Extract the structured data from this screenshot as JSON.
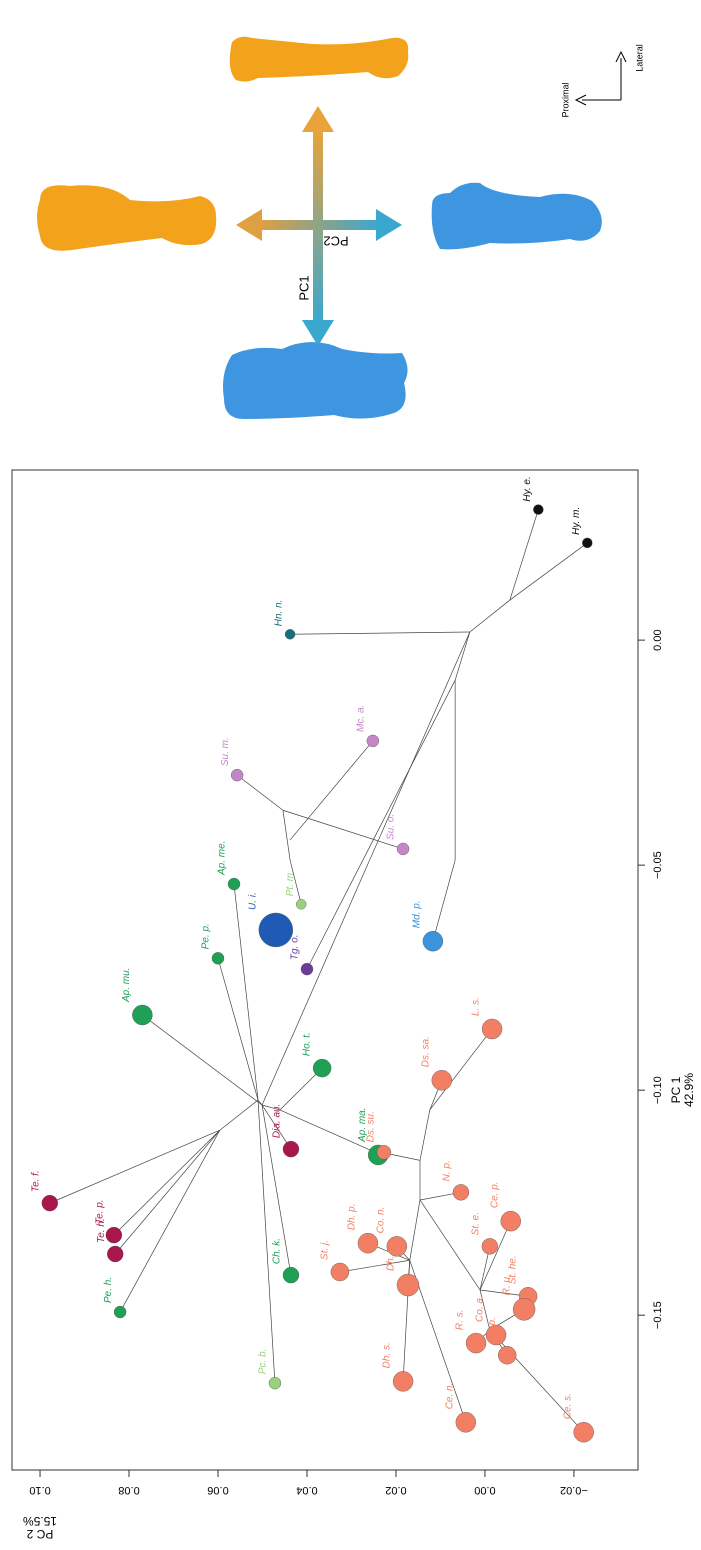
{
  "chart_data": {
    "type": "scatter",
    "x_label": [
      "PC 1",
      "42.9%"
    ],
    "y_label": [
      "PC 2",
      "15.5%"
    ],
    "xlim": [
      -0.1844,
      0.0378
    ],
    "ylim": [
      -0.0344,
      0.1063
    ],
    "xticks": [
      {
        "value": 0.0,
        "label": "0.00"
      },
      {
        "value": -0.05,
        "label": "−0.05"
      },
      {
        "value": -0.1,
        "label": "−0.10"
      },
      {
        "value": -0.15,
        "label": "−0.15"
      }
    ],
    "yticks": [
      {
        "value": 0.1,
        "label": "0.10"
      },
      {
        "value": 0.08,
        "label": "0.08"
      },
      {
        "value": 0.06,
        "label": "0.06"
      },
      {
        "value": 0.04,
        "label": "0.04"
      },
      {
        "value": 0.02,
        "label": "0.02"
      },
      {
        "value": 0.0,
        "label": "0.00"
      },
      {
        "value": -0.02,
        "label": "−0.02"
      }
    ],
    "points": [
      {
        "name": "Hy. e.",
        "pc1": 0.029,
        "pc2": -0.012,
        "size": 5,
        "color": "#111111"
      },
      {
        "name": "Hy. m.",
        "pc1": 0.0216,
        "pc2": -0.023,
        "size": 5,
        "color": "#111111"
      },
      {
        "name": "Hn. n.",
        "pc1": 0.0013,
        "pc2": 0.0438,
        "size": 5,
        "color": "#1b6e7e"
      },
      {
        "name": "Mc. a.",
        "pc1": -0.0224,
        "pc2": 0.0252,
        "size": 6,
        "color": "#c586c8"
      },
      {
        "name": "Su. m.",
        "pc1": -0.03,
        "pc2": 0.0557,
        "size": 6,
        "color": "#c586c8"
      },
      {
        "name": "Su. o.",
        "pc1": -0.0464,
        "pc2": 0.0184,
        "size": 6,
        "color": "#c586c8"
      },
      {
        "name": "Ap. me.",
        "pc1": -0.0542,
        "pc2": 0.0564,
        "size": 6,
        "color": "#1fa055"
      },
      {
        "name": "Pt. m.",
        "pc1": -0.0587,
        "pc2": 0.0413,
        "size": 5,
        "color": "#9bd07d"
      },
      {
        "name": "U. i.",
        "pc1": -0.0644,
        "pc2": 0.047,
        "size": 17,
        "color": "#1f5bb5"
      },
      {
        "name": "Md. p.",
        "pc1": -0.0669,
        "pc2": 0.0117,
        "size": 10,
        "color": "#3b93db"
      },
      {
        "name": "Pe. p.",
        "pc1": -0.0707,
        "pc2": 0.06,
        "size": 6,
        "color": "#1fa055"
      },
      {
        "name": "Tg. o.",
        "pc1": -0.0731,
        "pc2": 0.04,
        "size": 6,
        "color": "#6b3d9b"
      },
      {
        "name": "Ap. mu.",
        "pc1": -0.0833,
        "pc2": 0.077,
        "size": 10,
        "color": "#1fa055"
      },
      {
        "name": "L. s.",
        "pc1": -0.0864,
        "pc2": -0.0016,
        "size": 10,
        "color": "#f27f63"
      },
      {
        "name": "Ho. t.",
        "pc1": -0.0951,
        "pc2": 0.0366,
        "size": 9,
        "color": "#1fa055"
      },
      {
        "name": "Ds. sa.",
        "pc1": -0.0978,
        "pc2": 0.0097,
        "size": 10,
        "color": "#f27f63"
      },
      {
        "name": "Dia. au.",
        "pc1": -0.1131,
        "pc2": 0.0436,
        "size": 8,
        "color": "#a8174c"
      },
      {
        "name": "Ap. ma.",
        "pc1": -0.1144,
        "pc2": 0.024,
        "size": 10,
        "color": "#1fa055"
      },
      {
        "name": "Ds. su.",
        "pc1": -0.1138,
        "pc2": 0.0227,
        "size": 7,
        "color": "#f27f63"
      },
      {
        "name": "N. p.",
        "pc1": -0.1227,
        "pc2": 0.0054,
        "size": 8,
        "color": "#f27f63"
      },
      {
        "name": "Te. f.",
        "pc1": -0.1251,
        "pc2": 0.0978,
        "size": 8,
        "color": "#a8174c"
      },
      {
        "name": "Ce. p.",
        "pc1": -0.1291,
        "pc2": -0.0058,
        "size": 10,
        "color": "#f27f63"
      },
      {
        "name": "Te. p.",
        "pc1": -0.1322,
        "pc2": 0.0834,
        "size": 8,
        "color": "#a8174c"
      },
      {
        "name": "Dh. p.",
        "pc1": -0.134,
        "pc2": 0.0263,
        "size": 10,
        "color": "#f27f63"
      },
      {
        "name": "Co. n.",
        "pc1": -0.1347,
        "pc2": 0.0198,
        "size": 10,
        "color": "#f27f63"
      },
      {
        "name": "St. e.",
        "pc1": -0.1347,
        "pc2": -0.0011,
        "size": 8,
        "color": "#f27f63"
      },
      {
        "name": "Te. h.",
        "pc1": -0.1364,
        "pc2": 0.0831,
        "size": 8,
        "color": "#a8174c"
      },
      {
        "name": "St. j.",
        "pc1": -0.1404,
        "pc2": 0.0326,
        "size": 9,
        "color": "#f27f63"
      },
      {
        "name": "Ch. k.",
        "pc1": -0.1411,
        "pc2": 0.0436,
        "size": 8,
        "color": "#1fa055"
      },
      {
        "name": "Dh. m.",
        "pc1": -0.1433,
        "pc2": 0.0173,
        "size": 11,
        "color": "#f27f63"
      },
      {
        "name": "St. he.",
        "pc1": -0.1458,
        "pc2": -0.0097,
        "size": 9,
        "color": "#f27f63"
      },
      {
        "name": "R. u.",
        "pc1": -0.1487,
        "pc2": -0.0088,
        "size": 11,
        "color": "#f27f63"
      },
      {
        "name": "Pe. h.",
        "pc1": -0.1493,
        "pc2": 0.082,
        "size": 6,
        "color": "#1fa055"
      },
      {
        "name": "Co. a.",
        "pc1": -0.1544,
        "pc2": -0.0025,
        "size": 10,
        "color": "#f27f63"
      },
      {
        "name": "R. s.",
        "pc1": -0.1562,
        "pc2": 0.002,
        "size": 10,
        "color": "#f27f63"
      },
      {
        "name": "Dc. b.",
        "pc1": -0.1589,
        "pc2": -0.005,
        "size": 9,
        "color": "#f27f63"
      },
      {
        "name": "Pc. b.",
        "pc1": -0.1651,
        "pc2": 0.0472,
        "size": 6,
        "color": "#9bd07d"
      },
      {
        "name": "Dh. s.",
        "pc1": -0.1647,
        "pc2": 0.0184,
        "size": 10,
        "color": "#f27f63"
      },
      {
        "name": "Ce. n.",
        "pc1": -0.1738,
        "pc2": 0.0043,
        "size": 10,
        "color": "#f27f63"
      },
      {
        "name": "Ce. s.",
        "pc1": -0.176,
        "pc2": -0.0222,
        "size": 10,
        "color": "#f27f63"
      }
    ],
    "branches": [
      [
        [
          0.029,
          -0.012
        ],
        [
          0.0089,
          -0.0056
        ]
      ],
      [
        [
          0.0216,
          -0.023
        ],
        [
          0.0089,
          -0.0056
        ]
      ],
      [
        [
          0.0089,
          -0.0056
        ],
        [
          0.0018,
          0.0034
        ]
      ],
      [
        [
          0.0013,
          0.0438
        ],
        [
          0.0018,
          0.0034
        ]
      ],
      [
        [
          0.0018,
          0.0034
        ],
        [
          -0.0089,
          0.0067
        ]
      ],
      [
        [
          -0.0089,
          0.0067
        ],
        [
          -0.0489,
          0.0067
        ]
      ],
      [
        [
          -0.0489,
          0.0067
        ],
        [
          -0.0669,
          0.0117
        ]
      ],
      [
        [
          0.0018,
          0.0034
        ],
        [
          -0.1033,
          0.0501
        ]
      ],
      [
        [
          -0.0224,
          0.0252
        ],
        [
          -0.0444,
          0.0438
        ]
      ],
      [
        [
          -0.03,
          0.0557
        ],
        [
          -0.0378,
          0.0454
        ]
      ],
      [
        [
          -0.0378,
          0.0454
        ],
        [
          -0.0464,
          0.0184
        ]
      ],
      [
        [
          -0.0378,
          0.0454
        ],
        [
          -0.0489,
          0.0438
        ]
      ],
      [
        [
          -0.0489,
          0.0438
        ],
        [
          -0.0587,
          0.0413
        ]
      ],
      [
        [
          -0.0089,
          0.0067
        ],
        [
          -0.0731,
          0.04
        ]
      ],
      [
        [
          -0.0542,
          0.0564
        ],
        [
          -0.1022,
          0.051
        ]
      ],
      [
        [
          -0.0707,
          0.06
        ],
        [
          -0.1022,
          0.051
        ]
      ],
      [
        [
          -0.0833,
          0.077
        ],
        [
          -0.1033,
          0.0501
        ]
      ],
      [
        [
          -0.0951,
          0.0366
        ],
        [
          -0.1044,
          0.0461
        ]
      ],
      [
        [
          -0.1131,
          0.0436
        ],
        [
          -0.1033,
          0.0501
        ]
      ],
      [
        [
          -0.1022,
          0.051
        ],
        [
          -0.1089,
          0.0596
        ]
      ],
      [
        [
          -0.1089,
          0.0596
        ],
        [
          -0.1251,
          0.0978
        ]
      ],
      [
        [
          -0.1089,
          0.0596
        ],
        [
          -0.1322,
          0.0834
        ]
      ],
      [
        [
          -0.1089,
          0.0596
        ],
        [
          -0.1364,
          0.0831
        ]
      ],
      [
        [
          -0.1089,
          0.0596
        ],
        [
          -0.1493,
          0.082
        ]
      ],
      [
        [
          -0.1022,
          0.051
        ],
        [
          -0.1651,
          0.0472
        ]
      ],
      [
        [
          -0.1033,
          0.0501
        ],
        [
          -0.1411,
          0.0436
        ]
      ],
      [
        [
          -0.1022,
          0.051
        ],
        [
          -0.1033,
          0.0501
        ]
      ],
      [
        [
          -0.1033,
          0.0501
        ],
        [
          -0.1044,
          0.0461
        ]
      ],
      [
        [
          -0.1044,
          0.0461
        ],
        [
          -0.1133,
          0.0258
        ]
      ],
      [
        [
          -0.1133,
          0.0258
        ],
        [
          -0.1156,
          0.0146
        ]
      ],
      [
        [
          -0.1156,
          0.0146
        ],
        [
          -0.1044,
          0.0124
        ]
      ],
      [
        [
          -0.1044,
          0.0124
        ],
        [
          -0.0978,
          0.0097
        ]
      ],
      [
        [
          -0.1044,
          0.0124
        ],
        [
          -0.0864,
          -0.0016
        ]
      ],
      [
        [
          -0.1133,
          0.0258
        ],
        [
          -0.1144,
          0.024
        ]
      ],
      [
        [
          -0.1133,
          0.0258
        ],
        [
          -0.1138,
          0.0227
        ]
      ],
      [
        [
          -0.1156,
          0.0146
        ],
        [
          -0.1244,
          0.0146
        ]
      ],
      [
        [
          -0.1244,
          0.0146
        ],
        [
          -0.1227,
          0.0054
        ]
      ],
      [
        [
          -0.1244,
          0.0146
        ],
        [
          -0.1444,
          0.0011
        ]
      ],
      [
        [
          -0.1444,
          0.0011
        ],
        [
          -0.1347,
          -0.0011
        ]
      ],
      [
        [
          -0.1444,
          0.0011
        ],
        [
          -0.1291,
          -0.0058
        ]
      ],
      [
        [
          -0.1444,
          0.0011
        ],
        [
          -0.1458,
          -0.0097
        ]
      ],
      [
        [
          -0.1244,
          0.0146
        ],
        [
          -0.1378,
          0.0169
        ]
      ],
      [
        [
          -0.1378,
          0.0169
        ],
        [
          -0.134,
          0.0263
        ]
      ],
      [
        [
          -0.1378,
          0.0169
        ],
        [
          -0.1347,
          0.0198
        ]
      ],
      [
        [
          -0.1378,
          0.0169
        ],
        [
          -0.1404,
          0.0326
        ]
      ],
      [
        [
          -0.1378,
          0.0169
        ],
        [
          -0.1433,
          0.0173
        ]
      ],
      [
        [
          -0.1378,
          0.0169
        ],
        [
          -0.1647,
          0.0184
        ]
      ],
      [
        [
          -0.1378,
          0.0169
        ],
        [
          -0.1738,
          0.0043
        ]
      ],
      [
        [
          -0.1444,
          0.0011
        ],
        [
          -0.1533,
          -0.0011
        ]
      ],
      [
        [
          -0.1533,
          -0.0011
        ],
        [
          -0.1487,
          -0.0088
        ]
      ],
      [
        [
          -0.1533,
          -0.0011
        ],
        [
          -0.1544,
          -0.0025
        ]
      ],
      [
        [
          -0.1533,
          -0.0011
        ],
        [
          -0.1562,
          0.002
        ]
      ],
      [
        [
          -0.1533,
          -0.0011
        ],
        [
          -0.1589,
          -0.005
        ]
      ],
      [
        [
          -0.1533,
          -0.0011
        ],
        [
          -0.176,
          -0.0222
        ]
      ]
    ]
  },
  "diagram": {
    "pc1_label": "PC1",
    "pc2_label": "PC2",
    "lateral": "Lateral",
    "proximal": "Proximal"
  }
}
